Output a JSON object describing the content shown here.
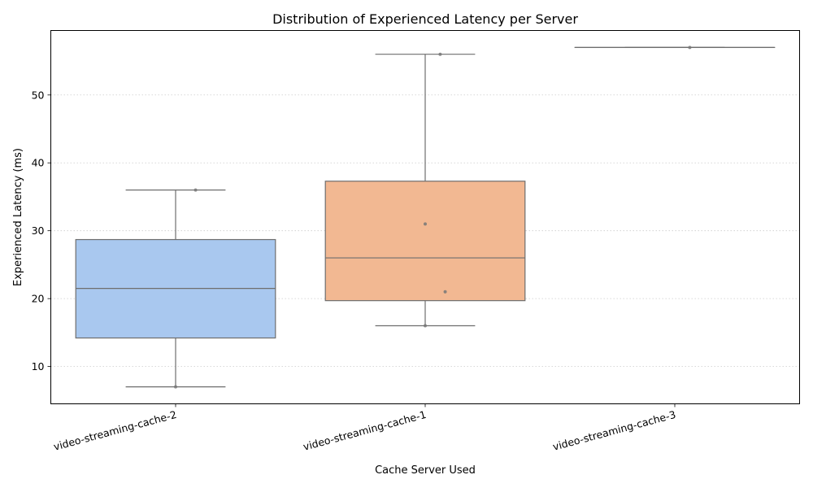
{
  "chart_data": {
    "type": "box",
    "title": "Distribution of Experienced Latency per Server",
    "xlabel": "Cache Server Used",
    "ylabel": "Experienced Latency (ms)",
    "ylim": [
      4.5,
      59.5
    ],
    "yticks": [
      10,
      20,
      30,
      40,
      50
    ],
    "grid": "y-dotted",
    "categories": [
      "video-streaming-cache-2",
      "video-streaming-cache-1",
      "video-streaming-cache-3"
    ],
    "colors": [
      "#a9c8ef",
      "#f2b892",
      "#b8e0b8"
    ],
    "boxes": [
      {
        "whisker_low": 7,
        "q1": 14.2,
        "median": 21.5,
        "q3": 28.7,
        "whisker_high": 36
      },
      {
        "whisker_low": 16,
        "q1": 19.7,
        "median": 26,
        "q3": 37.3,
        "whisker_high": 56
      },
      {
        "whisker_low": 57,
        "q1": 57,
        "median": 57,
        "q3": 57,
        "whisker_high": 57
      }
    ],
    "points": [
      {
        "category": 0,
        "offset": 0.0,
        "y": 7
      },
      {
        "category": 0,
        "offset": 0.08,
        "y": 36
      },
      {
        "category": 1,
        "offset": 0.0,
        "y": 16
      },
      {
        "category": 1,
        "offset": 0.08,
        "y": 21
      },
      {
        "category": 1,
        "offset": 0.0,
        "y": 31
      },
      {
        "category": 1,
        "offset": 0.06,
        "y": 56
      },
      {
        "category": 2,
        "offset": 0.06,
        "y": 57
      }
    ]
  }
}
